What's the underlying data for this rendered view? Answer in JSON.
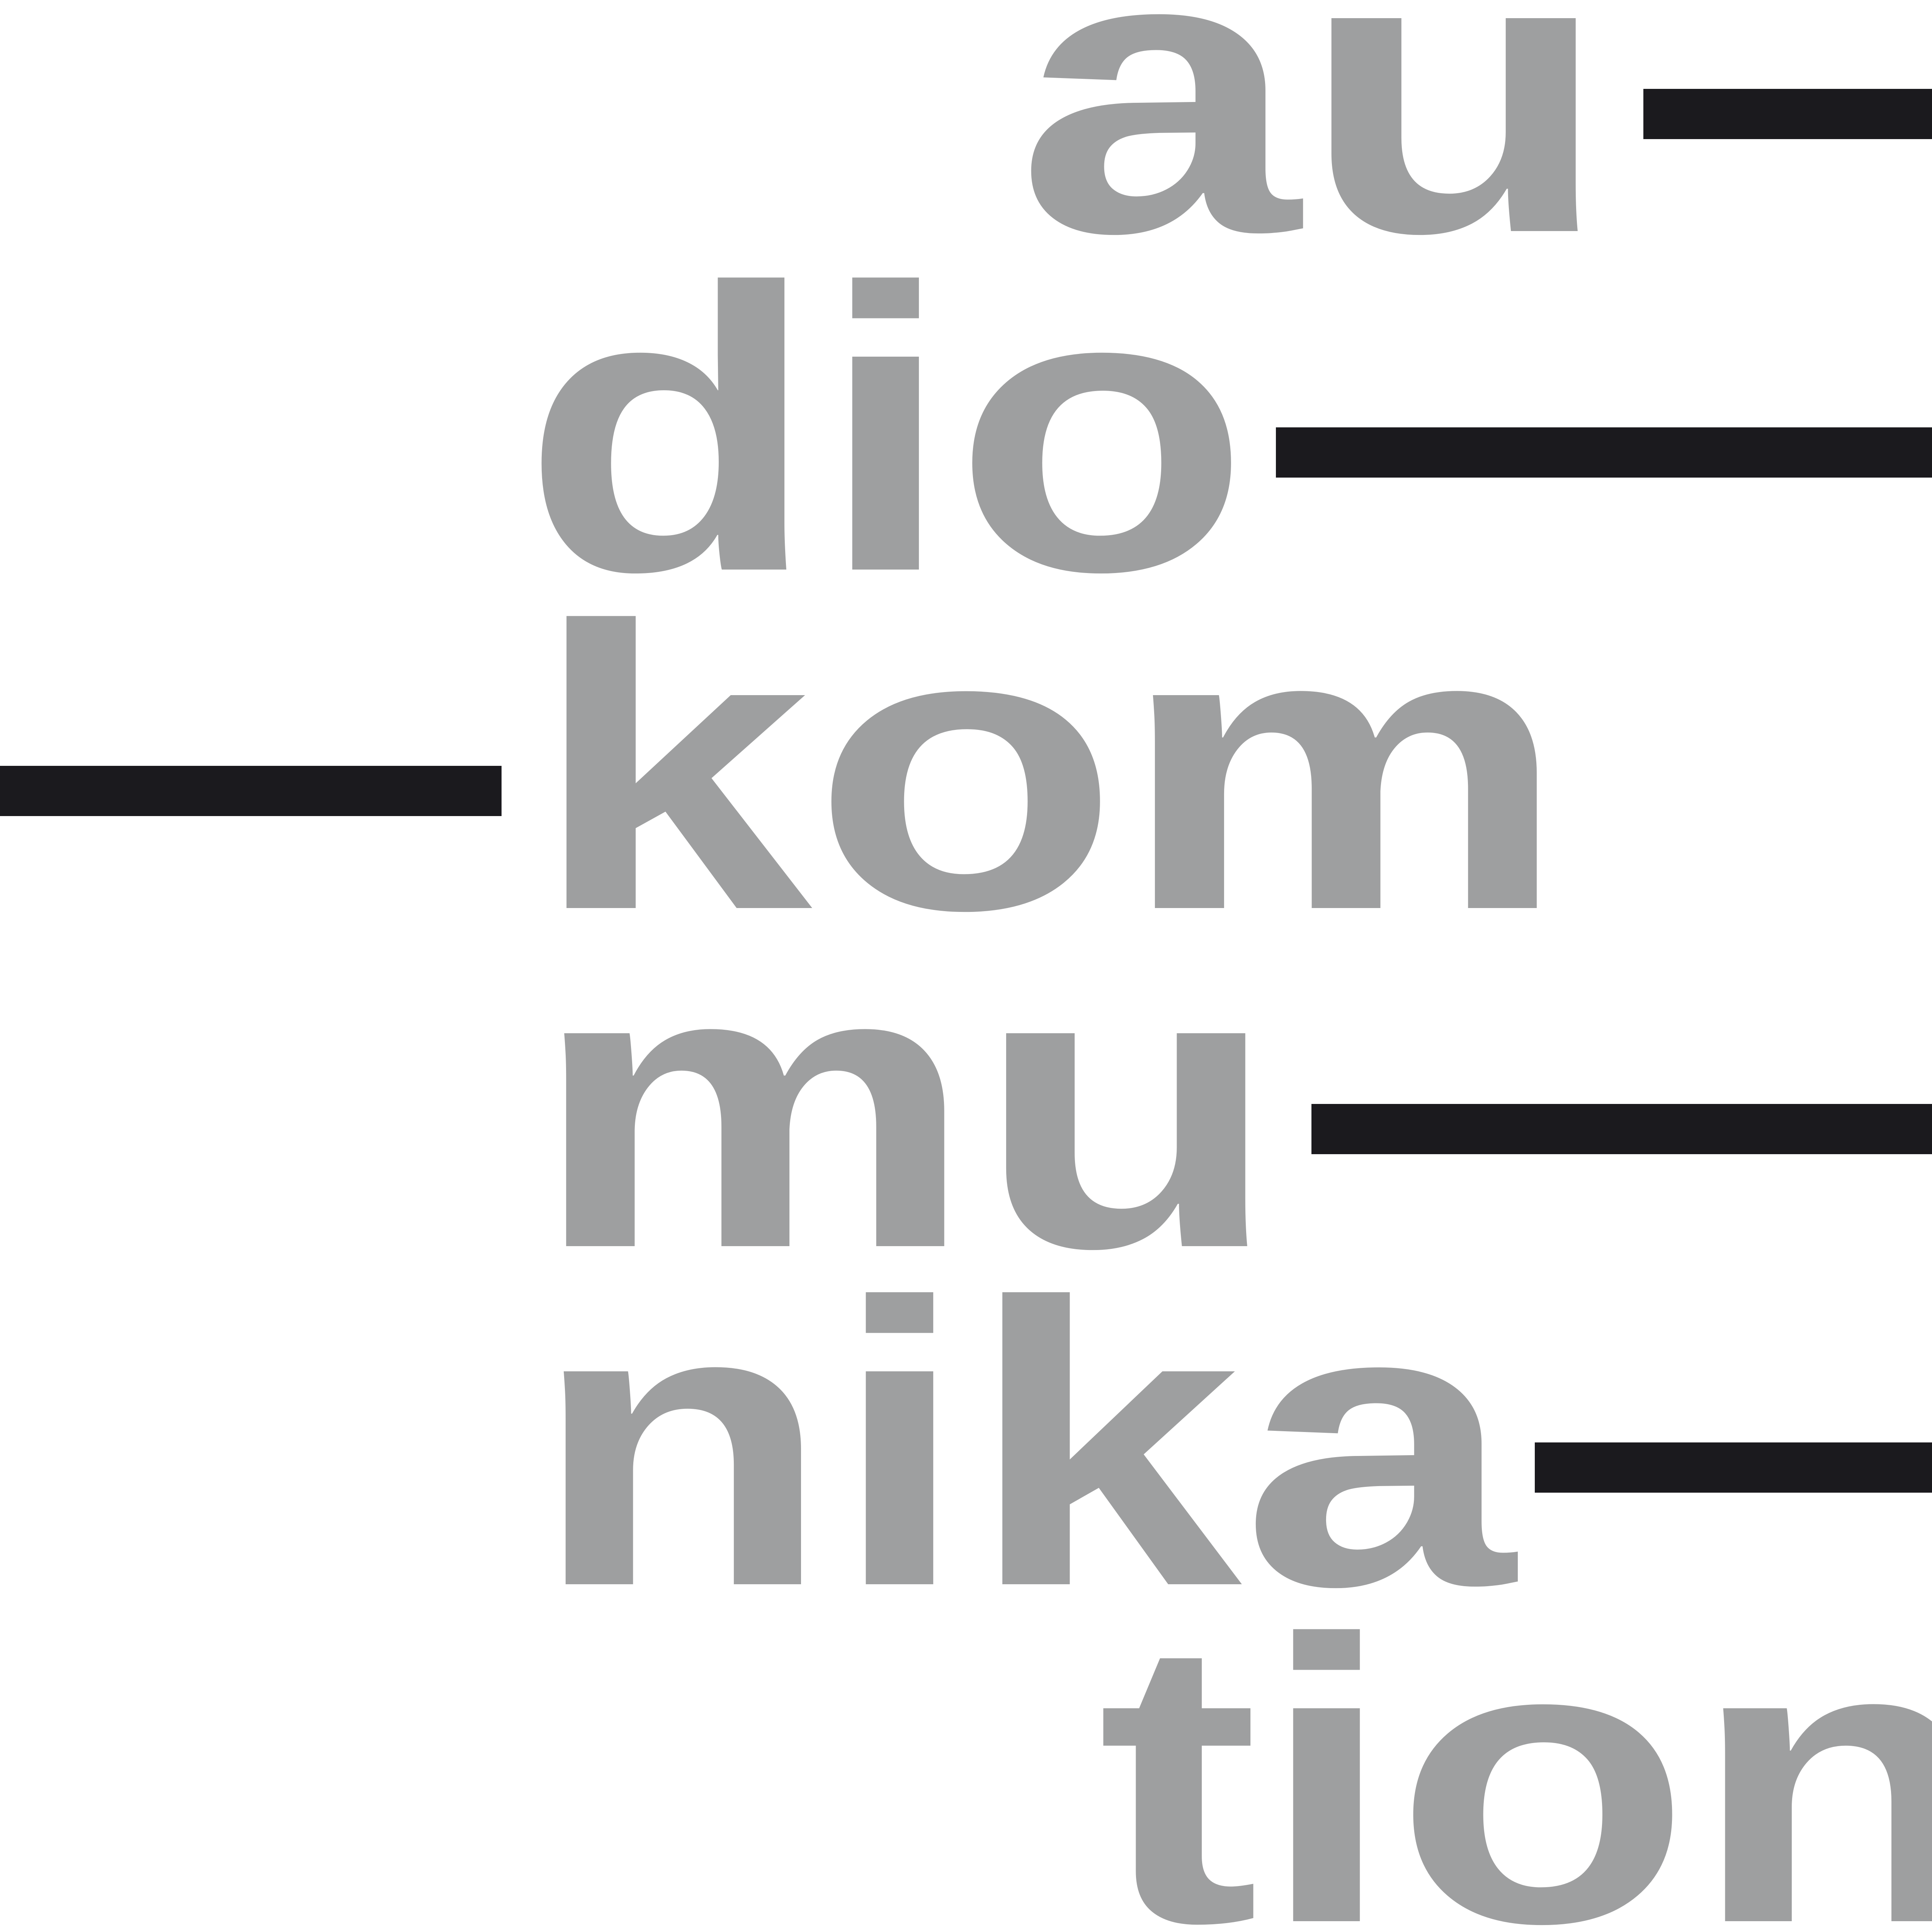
{
  "logo": {
    "syllables": [
      "au",
      "dio",
      "kom",
      "mu",
      "nika",
      "tion"
    ],
    "colors": {
      "text": "#9e9fa0",
      "bars": "#1b1a1e",
      "background": "#ffffff"
    }
  }
}
